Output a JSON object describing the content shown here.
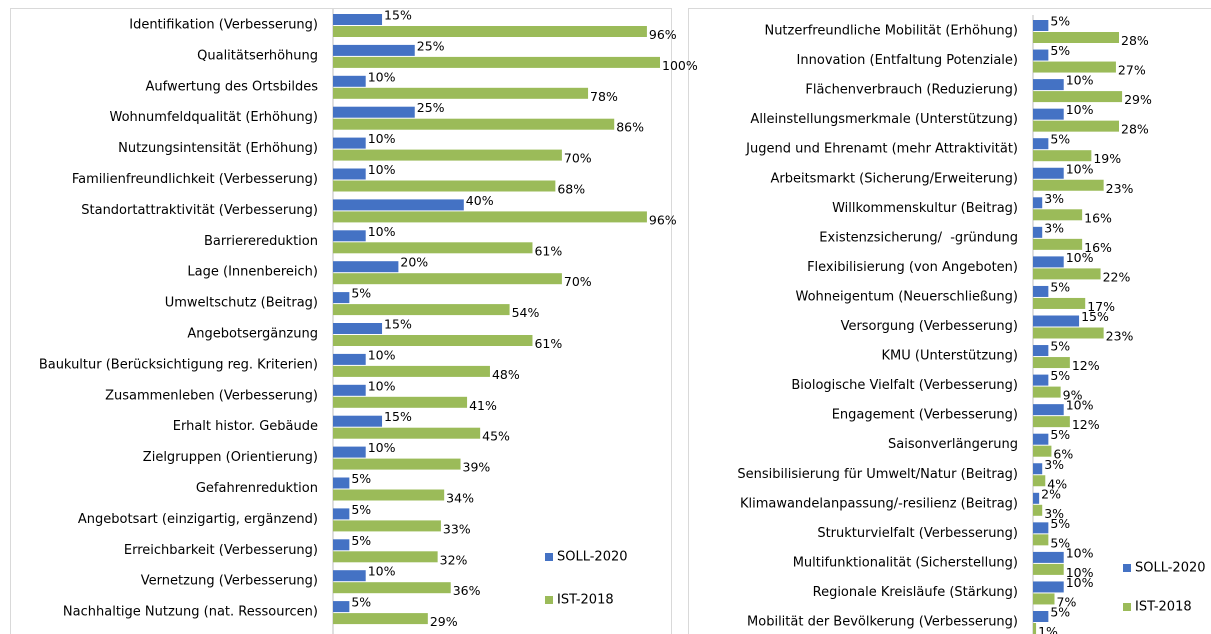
{
  "chart_data": [
    {
      "type": "bar",
      "orientation": "horizontal",
      "categories": [
        "Identifikation (Verbesserung)",
        "Qualitätserhöhung",
        "Aufwertung des Ortsbildes",
        "Wohnumfeldqualität (Erhöhung)",
        "Nutzungsintensität (Erhöhung)",
        "Familienfreundlichkeit (Verbesserung)",
        "Standortattraktivität (Verbesserung)",
        "Barrierereduktion",
        "Lage (Innenbereich)",
        "Umweltschutz (Beitrag)",
        "Angebotsergänzung",
        "Baukultur (Berücksichtigung reg. Kriterien)",
        "Zusammenleben (Verbesserung)",
        "Erhalt histor. Gebäude",
        "Zielgruppen (Orientierung)",
        "Gefahrenreduktion",
        "Angebotsart (einzigartig, ergänzend)",
        "Erreichbarkeit (Verbesserung)",
        "Vernetzung (Verbesserung)",
        "Nachhaltige Nutzung (nat. Ressourcen)"
      ],
      "series": [
        {
          "name": "SOLL-2020",
          "color": "#4472c4",
          "values": [
            15,
            25,
            10,
            25,
            10,
            10,
            40,
            10,
            20,
            5,
            15,
            10,
            10,
            15,
            10,
            5,
            5,
            5,
            10,
            5
          ],
          "value_labels": [
            "15%",
            "25%",
            "10%",
            "25%",
            "10%",
            "10%",
            "40%",
            "10%",
            "20%",
            "5%",
            "15%",
            "10%",
            "10%",
            "15%",
            "10%",
            "5%",
            "5%",
            "5%",
            "10%",
            "5%"
          ]
        },
        {
          "name": "IST-2018",
          "color": "#9bbb59",
          "values": [
            96,
            100,
            78,
            86,
            70,
            68,
            96,
            61,
            70,
            54,
            61,
            48,
            41,
            45,
            39,
            34,
            33,
            32,
            36,
            29
          ],
          "value_labels": [
            "96%",
            "100%",
            "78%",
            "86%",
            "70%",
            "68%",
            "96%",
            "61%",
            "70%",
            "54%",
            "61%",
            "48%",
            "41%",
            "45%",
            "39%",
            "34%",
            "33%",
            "32%",
            "36%",
            "29%"
          ]
        }
      ],
      "xlim": [
        0,
        100
      ],
      "legend": "lower right"
    },
    {
      "type": "bar",
      "orientation": "horizontal",
      "categories": [
        "Nutzerfreundliche Mobilität (Erhöhung)",
        "Innovation (Entfaltung Potenziale)",
        "Flächenverbrauch (Reduzierung)",
        "Alleinstellungsmerkmale (Unterstützung)",
        "Jugend und Ehrenamt (mehr Attraktivität)",
        "Arbeitsmarkt (Sicherung/Erweiterung)",
        "Willkommenskultur (Beitrag)",
        "Existenzsicherung/  -gründung",
        "Flexibilisierung (von Angeboten)",
        "Wohneigentum (Neuerschließung)",
        "Versorgung (Verbesserung)",
        "KMU (Unterstützung)",
        "Biologische Vielfalt (Verbesserung)",
        "Engagement (Verbesserung)",
        "Saisonverlängerung",
        "Sensibilisierung für Umwelt/Natur (Beitrag)",
        "Klimawandelanpassung/-resilienz (Beitrag)",
        "Strukturvielfalt (Verbesserung)",
        "Multifunktionalität (Sicherstellung)",
        "Regionale Kreisläufe (Stärkung)",
        "Mobilität der Bevölkerung (Verbesserung)"
      ],
      "series": [
        {
          "name": "SOLL-2020",
          "color": "#4472c4",
          "values": [
            5,
            5,
            10,
            10,
            5,
            10,
            3,
            3,
            10,
            5,
            15,
            5,
            5,
            10,
            5,
            3,
            2,
            5,
            10,
            10,
            5
          ],
          "value_labels": [
            "5%",
            "5%",
            "10%",
            "10%",
            "5%",
            "10%",
            "3%",
            "3%",
            "10%",
            "5%",
            "15%",
            "5%",
            "5%",
            "10%",
            "5%",
            "3%",
            "2%",
            "5%",
            "10%",
            "10%",
            "5%"
          ]
        },
        {
          "name": "IST-2018",
          "color": "#9bbb59",
          "values": [
            28,
            27,
            29,
            28,
            19,
            23,
            16,
            16,
            22,
            17,
            23,
            12,
            9,
            12,
            6,
            4,
            3,
            5,
            10,
            7,
            1
          ],
          "value_labels": [
            "28%",
            "27%",
            "29%",
            "28%",
            "19%",
            "23%",
            "16%",
            "16%",
            "22%",
            "17%",
            "23%",
            "12%",
            "9%",
            "12%",
            "6%",
            "4%",
            "3%",
            "5%",
            "10%",
            "7%",
            "1%"
          ]
        }
      ],
      "xlim": [
        0,
        56
      ],
      "legend": "lower right"
    }
  ]
}
